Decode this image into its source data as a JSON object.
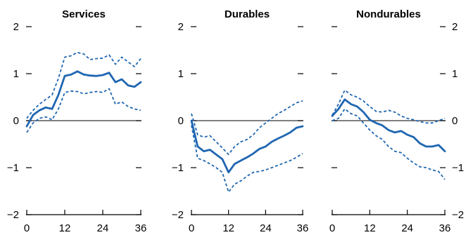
{
  "colors": {
    "line": "#1f66b1",
    "axis": "#000000",
    "zero": "#333333"
  },
  "chart_data": [
    {
      "type": "line",
      "title": "Services",
      "ylim": [
        -2,
        2
      ],
      "xlim": [
        0,
        36
      ],
      "xticks": [
        "0",
        "12",
        "24",
        "36"
      ],
      "yticks": [
        "2",
        "1",
        "0",
        "−1",
        "−2"
      ],
      "ytick_values": [
        2,
        1,
        0,
        -1,
        -2
      ],
      "ylabels_side": "left",
      "x": [
        0,
        2,
        4,
        6,
        8,
        10,
        12,
        14,
        16,
        18,
        20,
        22,
        24,
        26,
        28,
        30,
        32,
        34,
        36
      ],
      "series": [
        {
          "values": [
            -0.12,
            0.12,
            0.22,
            0.28,
            0.25,
            0.55,
            0.95,
            0.98,
            1.05,
            0.98,
            0.96,
            0.95,
            0.97,
            1.02,
            0.82,
            0.88,
            0.75,
            0.72,
            0.82
          ]
        },
        {
          "values": [
            0.05,
            0.22,
            0.35,
            0.45,
            0.55,
            0.9,
            1.35,
            1.38,
            1.45,
            1.42,
            1.3,
            1.32,
            1.33,
            1.4,
            1.2,
            1.35,
            1.25,
            1.15,
            1.32
          ]
        },
        {
          "values": [
            -0.25,
            -0.05,
            0.05,
            0.08,
            0.02,
            0.25,
            0.6,
            0.63,
            0.62,
            0.57,
            0.6,
            0.62,
            0.6,
            0.68,
            0.35,
            0.4,
            0.3,
            0.25,
            0.22
          ]
        }
      ]
    },
    {
      "type": "line",
      "title": "Durables",
      "ylim": [
        -2,
        2
      ],
      "xlim": [
        0,
        36
      ],
      "xticks": [
        "0",
        "12",
        "24",
        "36"
      ],
      "yticks": [
        "2",
        "1",
        "0",
        "−1",
        "−2"
      ],
      "ytick_values": [
        2,
        1,
        0,
        -1,
        -2
      ],
      "ylabels_side": "left",
      "x": [
        0,
        2,
        4,
        6,
        8,
        10,
        12,
        14,
        16,
        18,
        20,
        22,
        24,
        26,
        28,
        30,
        32,
        34,
        36
      ],
      "series": [
        {
          "values": [
            0.0,
            -0.55,
            -0.65,
            -0.62,
            -0.72,
            -0.82,
            -1.1,
            -0.92,
            -0.85,
            -0.78,
            -0.7,
            -0.6,
            -0.55,
            -0.45,
            -0.38,
            -0.32,
            -0.25,
            -0.15,
            -0.12
          ]
        },
        {
          "values": [
            0.15,
            -0.3,
            -0.35,
            -0.32,
            -0.45,
            -0.58,
            -0.72,
            -0.55,
            -0.45,
            -0.4,
            -0.3,
            -0.15,
            -0.05,
            0.05,
            0.15,
            0.22,
            0.3,
            0.38,
            0.42
          ]
        },
        {
          "values": [
            -0.1,
            -0.8,
            -0.85,
            -0.92,
            -1.0,
            -1.1,
            -1.52,
            -1.35,
            -1.28,
            -1.18,
            -1.1,
            -1.08,
            -1.05,
            -1.0,
            -0.95,
            -0.9,
            -0.85,
            -0.78,
            -0.7
          ]
        }
      ]
    },
    {
      "type": "line",
      "title": "Nondurables",
      "ylim": [
        -2,
        2
      ],
      "xlim": [
        0,
        36
      ],
      "xticks": [
        "0",
        "12",
        "24",
        "36"
      ],
      "yticks": [
        "2",
        "1",
        "0",
        "−1",
        "−2"
      ],
      "ytick_values": [
        2,
        1,
        0,
        -1,
        -2
      ],
      "ylabels_side": "right",
      "x": [
        0,
        2,
        4,
        6,
        8,
        10,
        12,
        14,
        16,
        18,
        20,
        22,
        24,
        26,
        28,
        30,
        32,
        34,
        36
      ],
      "series": [
        {
          "values": [
            0.1,
            0.25,
            0.45,
            0.35,
            0.3,
            0.18,
            0.02,
            -0.05,
            -0.1,
            -0.2,
            -0.25,
            -0.22,
            -0.3,
            -0.35,
            -0.48,
            -0.55,
            -0.55,
            -0.52,
            -0.65
          ]
        },
        {
          "values": [
            0.12,
            0.35,
            0.65,
            0.55,
            0.5,
            0.42,
            0.3,
            0.2,
            0.18,
            0.22,
            0.18,
            0.1,
            0.05,
            0.02,
            -0.02,
            -0.05,
            -0.05,
            0.0,
            0.05
          ]
        },
        {
          "values": [
            0.0,
            0.05,
            0.25,
            0.15,
            0.1,
            -0.05,
            -0.2,
            -0.32,
            -0.4,
            -0.55,
            -0.65,
            -0.68,
            -0.8,
            -0.9,
            -0.98,
            -1.0,
            -1.05,
            -1.08,
            -1.25
          ]
        }
      ]
    }
  ]
}
